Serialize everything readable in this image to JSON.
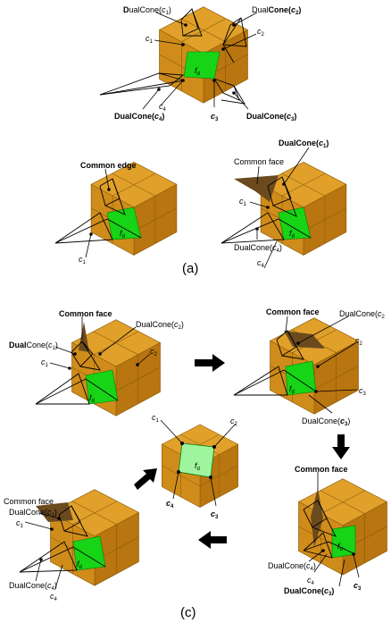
{
  "colors": {
    "cube_top": "#e0a02a",
    "cube_left": "#c98414",
    "cube_right": "#b87510",
    "face_green": "#17d417",
    "face_light_green": "#9ef59e",
    "dual_face": "#6b4a1e"
  },
  "panel_a": {
    "caption": "(a)",
    "top": {
      "labels": {
        "dualcone_c1_pre": "D",
        "dualcone_c1_rest": "ualCone(",
        "dualcone_c1_var": "c",
        "dualcone_c1_sub": "1",
        "dualcone_c1_close": ")",
        "dualcone_c2_pre": "Dual",
        "dualcone_c2_rest": "Cone(",
        "dualcone_c2_var": "c",
        "dualcone_c2_sub": "2",
        "dualcone_c2_close": ")",
        "c1_var": "c",
        "c1_sub": "1",
        "c2_var": "c",
        "c2_sub": "2",
        "c3_var": "c",
        "c3_sub": "3",
        "c4_var": "c",
        "c4_sub": "4",
        "fd_var": "f",
        "fd_sub": "d",
        "dualcone_c4_pre": "DualCone(",
        "dualcone_c4_var": "c",
        "dualcone_c4_sub": "4",
        "dualcone_c4_close": ")",
        "dualcone_c3_pre": "DualCone(",
        "dualcone_c3_var": "c",
        "dualcone_c3_sub": "3",
        "dualcone_c3_close": ")"
      }
    },
    "left": {
      "common_edge": "Common edge",
      "c1_var": "c",
      "c1_sub": "1",
      "fd_var": "f",
      "fd_sub": "d"
    },
    "right": {
      "dualcone_c1_pre": "DualCone(",
      "dualcone_c1_var": "c",
      "dualcone_c1_sub": "1",
      "dualcone_c1_close": ")",
      "common_face": "Common face",
      "c1_var": "c",
      "c1_sub": "1",
      "fd_var": "f",
      "fd_sub": "d",
      "dualcone_c4_pre": "DualCone(",
      "dualcone_c4_var": "c",
      "dualcone_c4_sub": "4",
      "dualcone_c4_close": ")",
      "c4_var": "c",
      "c4_sub": "4"
    }
  },
  "panel_c": {
    "caption": "(c)",
    "top_left": {
      "common_face": "Common face",
      "dualcone_c2_pre": "DualCone(",
      "dualcone_c2_var": "c",
      "dualcone_c2_sub": "2",
      "dualcone_c2_close": ")",
      "dualcone_c1_pre": "Dual",
      "dualcone_c1_rest": "Cone(",
      "dualcone_c1_var": "c",
      "dualcone_c1_sub": "1",
      "dualcone_c1_close": ")",
      "c1_var": "c",
      "c1_sub": "1",
      "c2_var": "c",
      "c2_sub": "2",
      "fd_var": "f",
      "fd_sub": "d"
    },
    "top_right": {
      "common_face": "Common face",
      "dualcone_c2_pre": "DualCone(",
      "dualcone_c2_var": "c",
      "dualcone_c2_sub": "2",
      "c2_var": "c",
      "c2_sub": "2",
      "c3_var": "c",
      "c3_sub": "3",
      "fd_var": "f",
      "fd_sub": "d",
      "dualcone_c3_pre": "DualCone(",
      "dualcone_c3_var": "c",
      "dualcone_c3_sub": "3",
      "dualcone_c3_close": ")"
    },
    "center": {
      "c1_var": "c",
      "c1_sub": "1",
      "c2_var": "c",
      "c2_sub": "2",
      "c3_var": "c",
      "c3_sub": "3",
      "c4_var": "c",
      "c4_sub": "4",
      "fd_var": "f",
      "fd_sub": "d"
    },
    "bottom_left": {
      "common_face": "Common face",
      "dualcone_c1_pre": "DualCone(",
      "dualcone_c1_var": "c",
      "dualcone_c1_sub": "1",
      "dualcone_c1_close": ")",
      "c1_var": "c",
      "c1_sub": "1",
      "fd_var": "f",
      "fd_sub": "d",
      "dualcone_c4_pre": "DualCone(",
      "dualcone_c4_var": "c",
      "dualcone_c4_sub": "4",
      "dualcone_c4_close": ")",
      "c4_var": "c",
      "c4_sub": "4"
    },
    "bottom_right": {
      "common_face": "Common face",
      "dualcone_c4_pre": "DualCone(",
      "dualcone_c4_var": "c",
      "dualcone_c4_sub": "4",
      "dualcone_c4_close": ")",
      "c4_var": "c",
      "c4_sub": "4",
      "fd_var": "f",
      "fd_sub": "d",
      "dualcone_c3_pre": "DualCone(",
      "dualcone_c3_var": "c",
      "dualcone_c3_sub": "3",
      "dualcone_c3_close": ")",
      "c3_var": "c",
      "c3_sub": "3"
    }
  }
}
